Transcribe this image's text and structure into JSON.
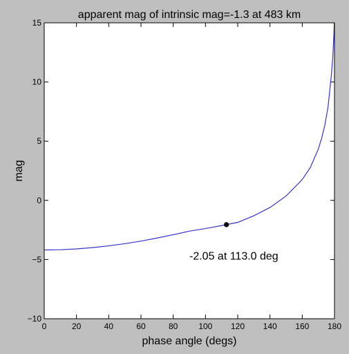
{
  "chart_data": {
    "type": "line",
    "title": "apparent mag of intrinsic mag=-1.3 at 483 km",
    "xlabel": "phase angle (degs)",
    "ylabel": "mag",
    "xlim": [
      0,
      180
    ],
    "ylim": [
      -10,
      15
    ],
    "x_ticks": [
      0,
      20,
      40,
      60,
      80,
      100,
      120,
      140,
      160,
      180
    ],
    "y_ticks": [
      -10,
      -5,
      0,
      5,
      10,
      15
    ],
    "x_tick_labels": [
      "0",
      "20",
      "40",
      "60",
      "80",
      "100",
      "120",
      "140",
      "160",
      "180"
    ],
    "y_tick_labels": [
      "−10",
      "−5",
      "0",
      "5",
      "10",
      "15"
    ],
    "grid": false,
    "series": [
      {
        "color": "#3333cc",
        "x": [
          0,
          10,
          20,
          30,
          40,
          50,
          60,
          70,
          80,
          90,
          100,
          110,
          113,
          120,
          130,
          140,
          150,
          160,
          165,
          170,
          172,
          174,
          176,
          178,
          179,
          179.6,
          179.9
        ],
        "y": [
          -4.19,
          -4.17,
          -4.1,
          -3.99,
          -3.84,
          -3.66,
          -3.44,
          -3.18,
          -2.9,
          -2.6,
          -2.38,
          -2.13,
          -2.05,
          -1.86,
          -1.3,
          -0.6,
          0.37,
          1.76,
          2.77,
          4.35,
          5.23,
          6.35,
          7.89,
          10.5,
          12.2,
          13.9,
          15
        ]
      }
    ],
    "highlight_point": {
      "x": 113.0,
      "y": -2.05
    },
    "annotation": {
      "text": "-2.05 at 113.0 deg",
      "x": 90,
      "y": -5
    }
  }
}
